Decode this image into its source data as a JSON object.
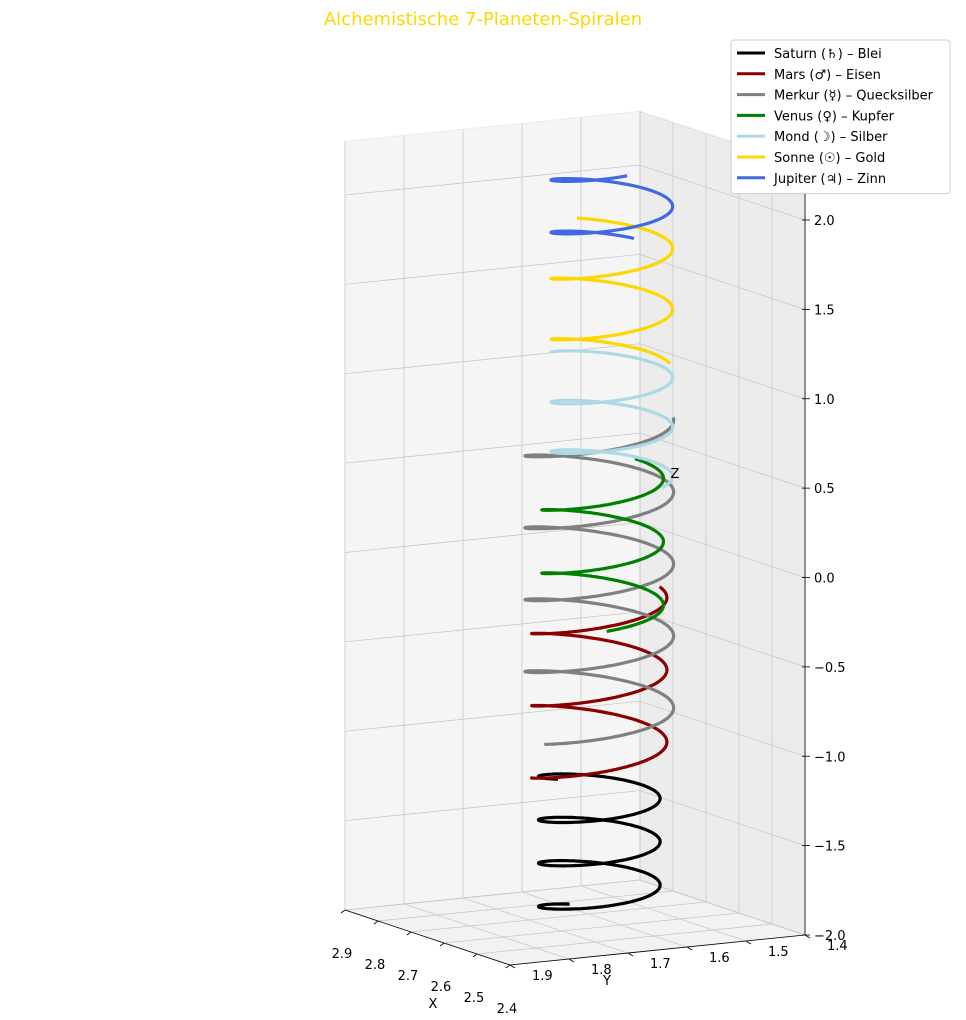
{
  "chart_data": {
    "type": "line",
    "projection": "3d",
    "title": "Alchemistische 7-Planeten-Spiralen",
    "title_color": "#FFD700",
    "xlabel": "X",
    "ylabel": "Y",
    "zlabel": "Z",
    "xlim": [
      2.4,
      2.9
    ],
    "ylim": [
      1.4,
      1.9
    ],
    "zlim": [
      -2.0,
      2.3
    ],
    "x_ticks": [
      "2.9",
      "2.8",
      "2.7",
      "2.6",
      "2.5",
      "2.4"
    ],
    "y_ticks": [
      "1.4",
      "1.5",
      "1.6",
      "1.7",
      "1.8",
      "1.9"
    ],
    "z_ticks": [
      "2.0",
      "1.5",
      "1.0",
      "0.5",
      "0.0",
      "−0.5",
      "−1.0",
      "−1.5",
      "−2.0"
    ],
    "grid": true,
    "legend_position": "outside-top-right",
    "series": [
      {
        "name": "Saturn (♄) – Blei",
        "color": "#000000",
        "center": [
          2.63,
          1.62
        ],
        "radius": 0.09,
        "z_start": -1.95,
        "z_end": -1.15,
        "turns": 3.3
      },
      {
        "name": "Mars (♂) – Eisen",
        "color": "#8B0000",
        "center": [
          2.63,
          1.62
        ],
        "radius": 0.1,
        "z_start": -1.2,
        "z_end": -0.15,
        "turns": 2.6
      },
      {
        "name": "Merkur (☿) – Quecksilber",
        "color": "#808080",
        "center": [
          2.63,
          1.62
        ],
        "radius": 0.11,
        "z_start": -0.95,
        "z_end": 0.82,
        "turns": 4.4
      },
      {
        "name": "Venus (♀) – Kupfer",
        "color": "#008000",
        "center": [
          2.62,
          1.62
        ],
        "radius": 0.09,
        "z_start": -0.3,
        "z_end": 0.55,
        "turns": 2.4
      },
      {
        "name": "Mond (☽) – Silber",
        "color": "#ADD8E6",
        "center": [
          2.61,
          1.61
        ],
        "radius": 0.09,
        "z_start": 0.48,
        "z_end": 1.2,
        "turns": 2.6
      },
      {
        "name": "Sonne (☉) – Gold",
        "color": "#FFD700",
        "center": [
          2.61,
          1.61
        ],
        "radius": 0.09,
        "z_start": 1.12,
        "z_end": 1.9,
        "turns": 2.3
      },
      {
        "name": "Jupiter (♃) – Zinn",
        "color": "#4169E1",
        "center": [
          2.61,
          1.61
        ],
        "radius": 0.09,
        "z_start": 1.78,
        "z_end": 2.25,
        "turns": 1.6
      }
    ]
  }
}
